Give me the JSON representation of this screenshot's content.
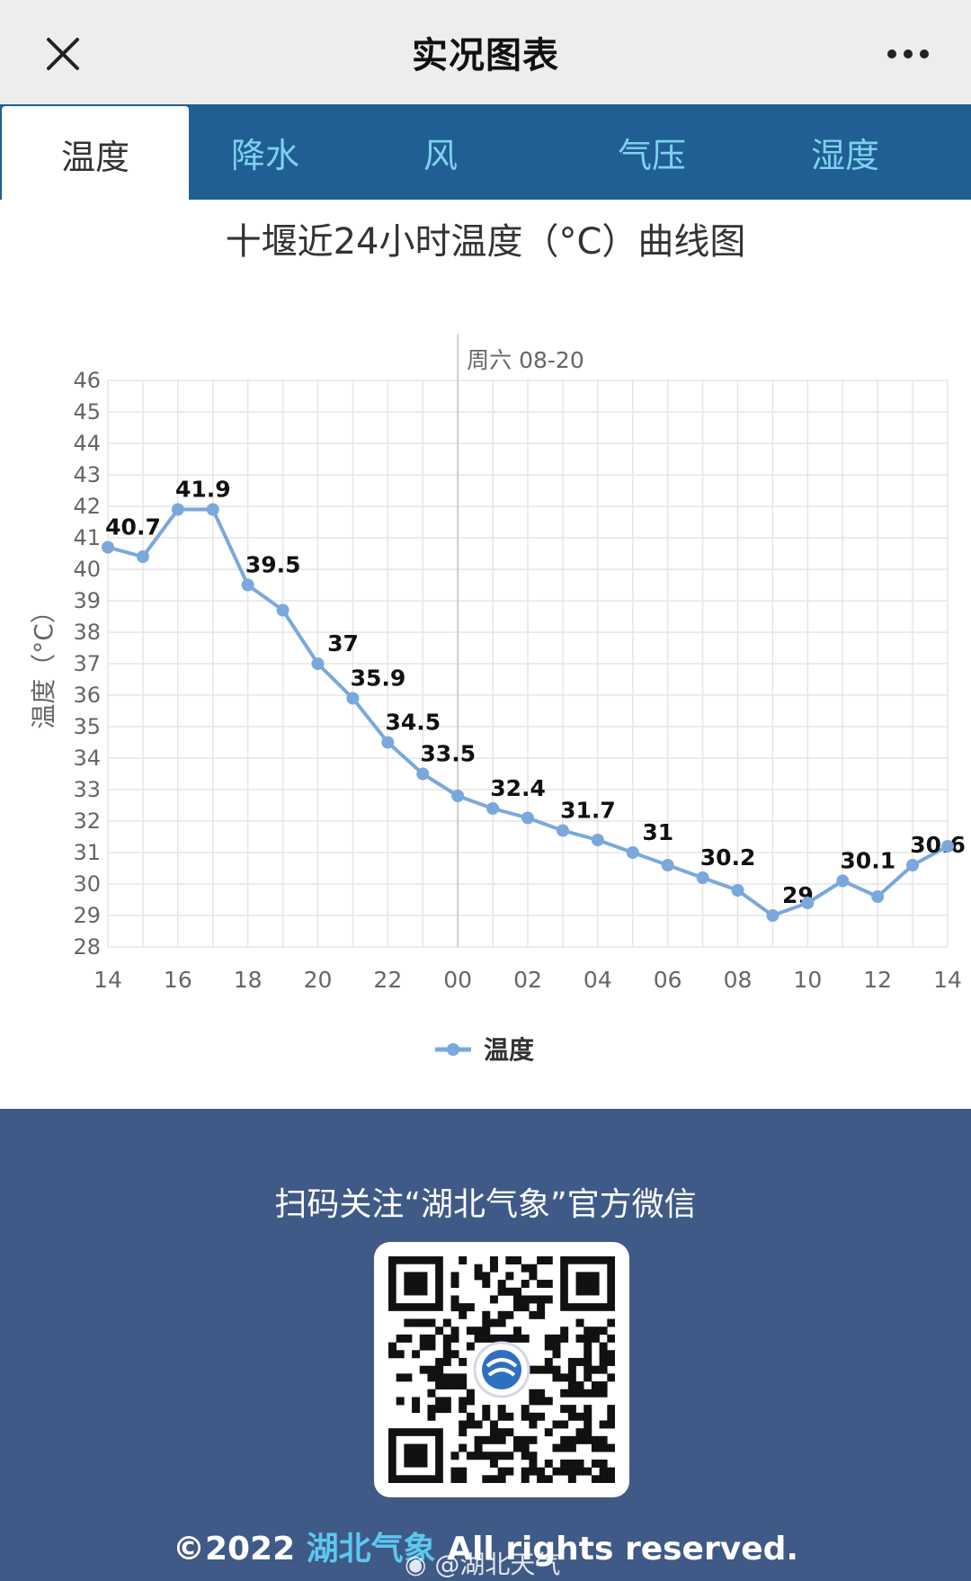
{
  "header": {
    "title": "实况图表"
  },
  "tabs": [
    {
      "label": "温度",
      "active": true
    },
    {
      "label": "降水",
      "active": false
    },
    {
      "label": "风",
      "active": false
    },
    {
      "label": "气压",
      "active": false
    },
    {
      "label": "湿度",
      "active": false
    }
  ],
  "chart_title": "十堰近24小时温度（°C）曲线图",
  "chart_data": {
    "type": "line",
    "day_marker": "周六 08-20",
    "ylabel": "温度（°C）",
    "ylim": [
      28,
      46
    ],
    "y_ticks": [
      28,
      29,
      30,
      31,
      32,
      33,
      34,
      35,
      36,
      37,
      38,
      39,
      40,
      41,
      42,
      43,
      44,
      45,
      46
    ],
    "x_tick_labels": [
      "14",
      "16",
      "18",
      "20",
      "22",
      "00",
      "02",
      "04",
      "06",
      "08",
      "10",
      "12",
      "14"
    ],
    "grid": true,
    "legend_position": "bottom",
    "series": [
      {
        "name": "温度",
        "color": "#7aa8dc",
        "values": [
          40.7,
          40.4,
          41.9,
          41.9,
          39.5,
          38.7,
          37,
          35.9,
          34.5,
          33.5,
          32.8,
          32.4,
          32.1,
          31.7,
          31.4,
          31,
          30.6,
          30.2,
          29.8,
          29,
          29.4,
          30.1,
          29.6,
          30.6,
          31.2
        ],
        "labels": [
          "40.7",
          "",
          "41.9",
          "",
          "39.5",
          "",
          "37",
          "35.9",
          "34.5",
          "33.5",
          "",
          "32.4",
          "",
          "31.7",
          "",
          "31",
          "",
          "30.2",
          "",
          "29",
          "",
          "30.1",
          "",
          "30.6",
          ""
        ]
      }
    ]
  },
  "footer": {
    "follow_text": "扫码关注“湖北气象”官方微信",
    "copyright_prefix": "©2022 ",
    "copyright_brand": "湖北气象",
    "copyright_suffix": " All rights reserved.",
    "watermark": "@湖北天气"
  },
  "colors": {
    "tab_bar": "#1f5f94",
    "tab_text": "#7fd1ee",
    "footer_bg": "#3f5a86",
    "line": "#7aa8dc"
  },
  "icons": {
    "close": "close-icon",
    "more": "more-dots-icon",
    "qr": "qr-code-icon",
    "weibo": "weibo-icon"
  }
}
